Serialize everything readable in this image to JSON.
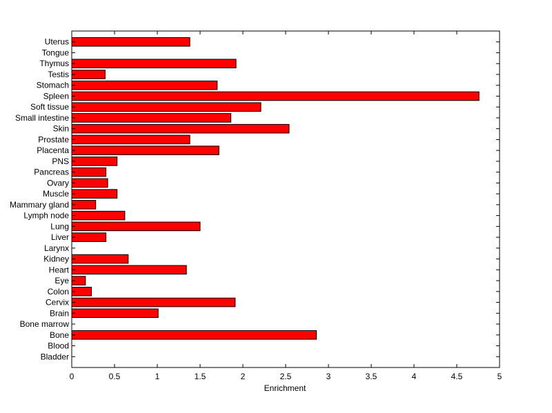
{
  "chart_data": {
    "type": "bar",
    "orientation": "horizontal",
    "title": "",
    "xlabel": "Enrichment",
    "ylabel": "",
    "xlim": [
      0,
      5
    ],
    "xticks": [
      "0",
      "0.5",
      "1",
      "1.5",
      "2",
      "2.5",
      "3",
      "3.5",
      "4",
      "4.5",
      "5"
    ],
    "grid": false,
    "bar_color": "#ff0000",
    "bar_edge_color": "#000000",
    "categories": [
      "Bladder",
      "Blood",
      "Bone",
      "Bone marrow",
      "Brain",
      "Cervix",
      "Colon",
      "Eye",
      "Heart",
      "Kidney",
      "Larynx",
      "Liver",
      "Lung",
      "Lymph node",
      "Mammary gland",
      "Muscle",
      "Ovary",
      "Pancreas",
      "PNS",
      "Placenta",
      "Prostate",
      "Skin",
      "Small intestine",
      "Soft tissue",
      "Spleen",
      "Stomach",
      "Testis",
      "Thymus",
      "Tongue",
      "Uterus"
    ],
    "values": [
      0,
      0,
      2.86,
      0,
      1.01,
      1.91,
      0.23,
      0.16,
      1.34,
      0.66,
      0,
      0.4,
      1.5,
      0.62,
      0.28,
      0.53,
      0.42,
      0.4,
      0.53,
      1.72,
      1.38,
      2.54,
      1.86,
      2.21,
      4.76,
      1.7,
      0.39,
      1.92,
      0,
      1.38
    ]
  }
}
